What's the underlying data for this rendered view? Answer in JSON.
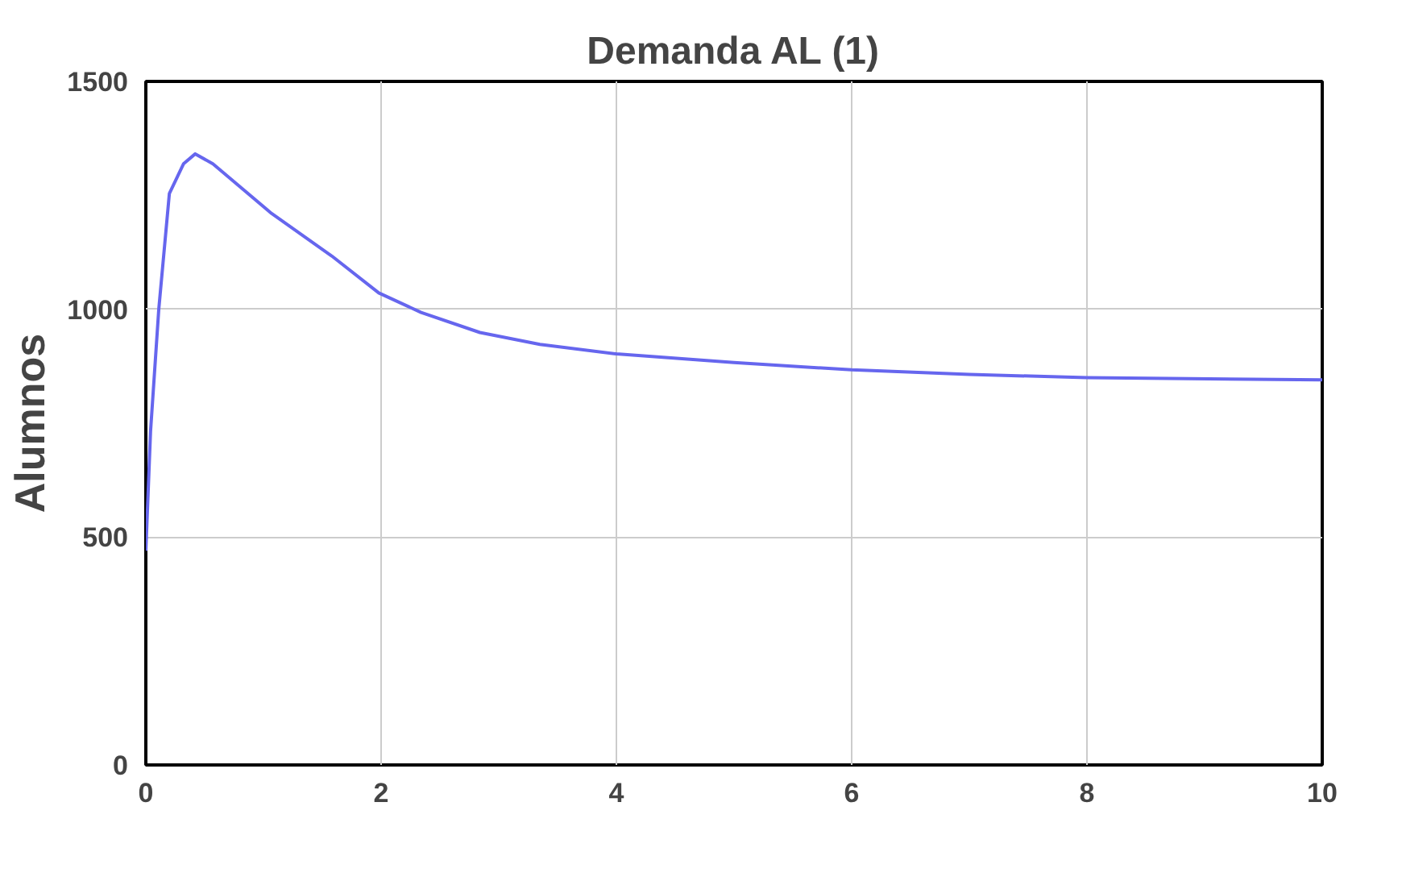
{
  "chart_data": {
    "type": "line",
    "title": "Demanda AL (1)",
    "ylabel": "Alumnos",
    "x": [
      0,
      0.04,
      0.11,
      0.2,
      0.32,
      0.42,
      0.57,
      1.07,
      1.58,
      1.98,
      2.34,
      2.84,
      3.35,
      4,
      5,
      6,
      7,
      8,
      10
    ],
    "series": [
      {
        "color": "#6666ee",
        "values": [
          470,
          732,
          1000,
          1254,
          1319,
          1341,
          1319,
          1210,
          1117,
          1036,
          993,
          949,
          923,
          902,
          883,
          867,
          857,
          850,
          845
        ]
      }
    ],
    "xlim": [
      0,
      10
    ],
    "ylim": [
      0,
      1500
    ],
    "xticks": [
      0,
      2,
      4,
      6,
      8,
      10
    ],
    "yticks": [
      0,
      500,
      1000,
      1500
    ],
    "grid": true,
    "marker": "none",
    "line_style": "solid"
  }
}
